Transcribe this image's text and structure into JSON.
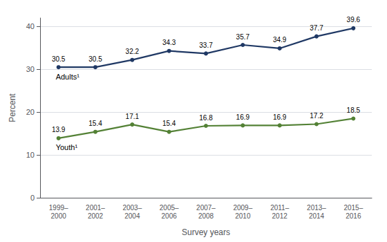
{
  "chart_data": {
    "type": "line",
    "categories": [
      "1999–\n2000",
      "2001–\n2002",
      "2003–\n2004",
      "2005–\n2006",
      "2007–\n2008",
      "2009–\n2010",
      "2011–\n2012",
      "2013–\n2014",
      "2015–\n2016"
    ],
    "series": [
      {
        "name": "Adults¹",
        "color": "#1f3864",
        "values": [
          30.5,
          30.5,
          32.2,
          34.3,
          33.7,
          35.7,
          34.9,
          37.7,
          39.6
        ]
      },
      {
        "name": "Youth¹",
        "color": "#538135",
        "values": [
          13.9,
          15.4,
          17.1,
          15.4,
          16.8,
          16.9,
          16.9,
          17.2,
          18.5
        ]
      }
    ],
    "xlabel": "Survey years",
    "ylabel": "Percent",
    "ylim": [
      0,
      42
    ],
    "yticks": [
      0,
      10,
      20,
      30,
      40
    ],
    "grid": true,
    "data_labels": true,
    "marker": "circle"
  }
}
